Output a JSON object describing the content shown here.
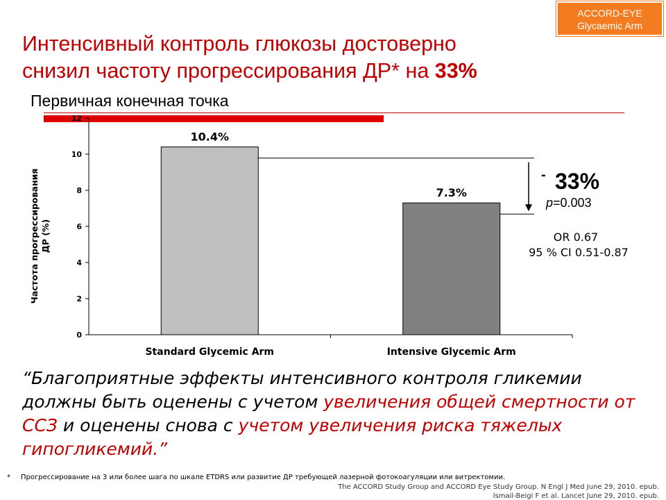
{
  "badge": {
    "line1": "ACCORD-EYE",
    "line2": "Glycaemic Arm"
  },
  "main_title": {
    "line1": "Интенсивный контроль глюкозы достоверно",
    "line2": "снизил частоту прогрессирования ДР* на ",
    "highlight": "33%"
  },
  "subtitle": "Первичная конечная точка",
  "colors": {
    "title_red": "#c00000",
    "accent_red": "#e00000",
    "badge_orange": "#f47c20",
    "bar_standard": "#c0c0c0",
    "bar_intensive": "#808080"
  },
  "chart_data": {
    "type": "bar",
    "categories": [
      "Standard Glycemic Arm",
      "Intensive Glycemic Arm"
    ],
    "values": [
      10.4,
      7.3
    ],
    "data_labels": [
      "10.4%",
      "7.3%"
    ],
    "ylabel": "Частота прогрессирования ДР (%)",
    "ylim": [
      0,
      12
    ],
    "yticks": [
      0,
      2,
      4,
      6,
      8,
      10,
      12
    ],
    "grid": false,
    "annotations": {
      "reduction": "33%",
      "minus": "-",
      "p_label": "p",
      "p_value": "=0.003",
      "or_text": "OR 0.67",
      "ci_text": "95 % CI 0.51-0.87"
    }
  },
  "quote": {
    "part1": "“Благоприятные эффекты интенсивного контроля гликемии должны быть оценены  с учетом ",
    "part2_red": "увеличения общей смертности от ССЗ",
    "part3": " и оценены снова с ",
    "part4_red": "учетом увеличения риска тяжелых гипогликемий.”"
  },
  "footnote": {
    "star": "*",
    "text": "Прогрессирование на 3 или более шага по шкале ETDRS или развитие ДР требующей лазерной фотокоагуляции или витректомии."
  },
  "references": [
    "The ACCORD Study Group and ACCORD Eye Study Group. N Engl J Med June 29, 2010. epub.",
    "Ismail-Beigi F et al. Lancet June 29, 2010. epub."
  ]
}
